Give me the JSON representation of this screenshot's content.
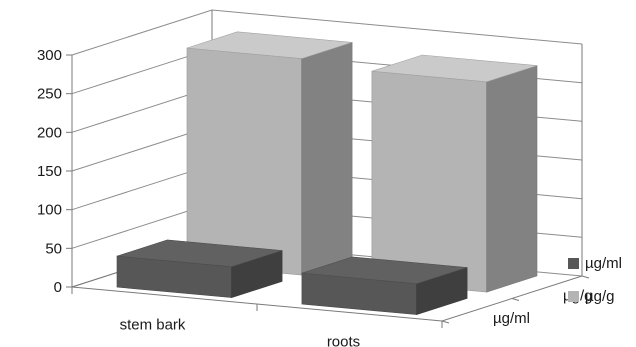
{
  "chart_data": {
    "type": "bar",
    "three_d": true,
    "categories": [
      "stem bark",
      "roots"
    ],
    "series": [
      {
        "name": "µg/ml",
        "values": [
          40,
          40
        ],
        "color": "#575757"
      },
      {
        "name": "µg/g",
        "values": [
          280,
          272
        ],
        "color": "#b4b4b4"
      }
    ],
    "depth_labels": [
      "µg/ml",
      "µg/g"
    ],
    "y_ticks": [
      "0",
      "50",
      "100",
      "150",
      "200",
      "250",
      "300"
    ],
    "ylim": [
      0,
      300
    ],
    "grid": true,
    "legend": "right"
  }
}
